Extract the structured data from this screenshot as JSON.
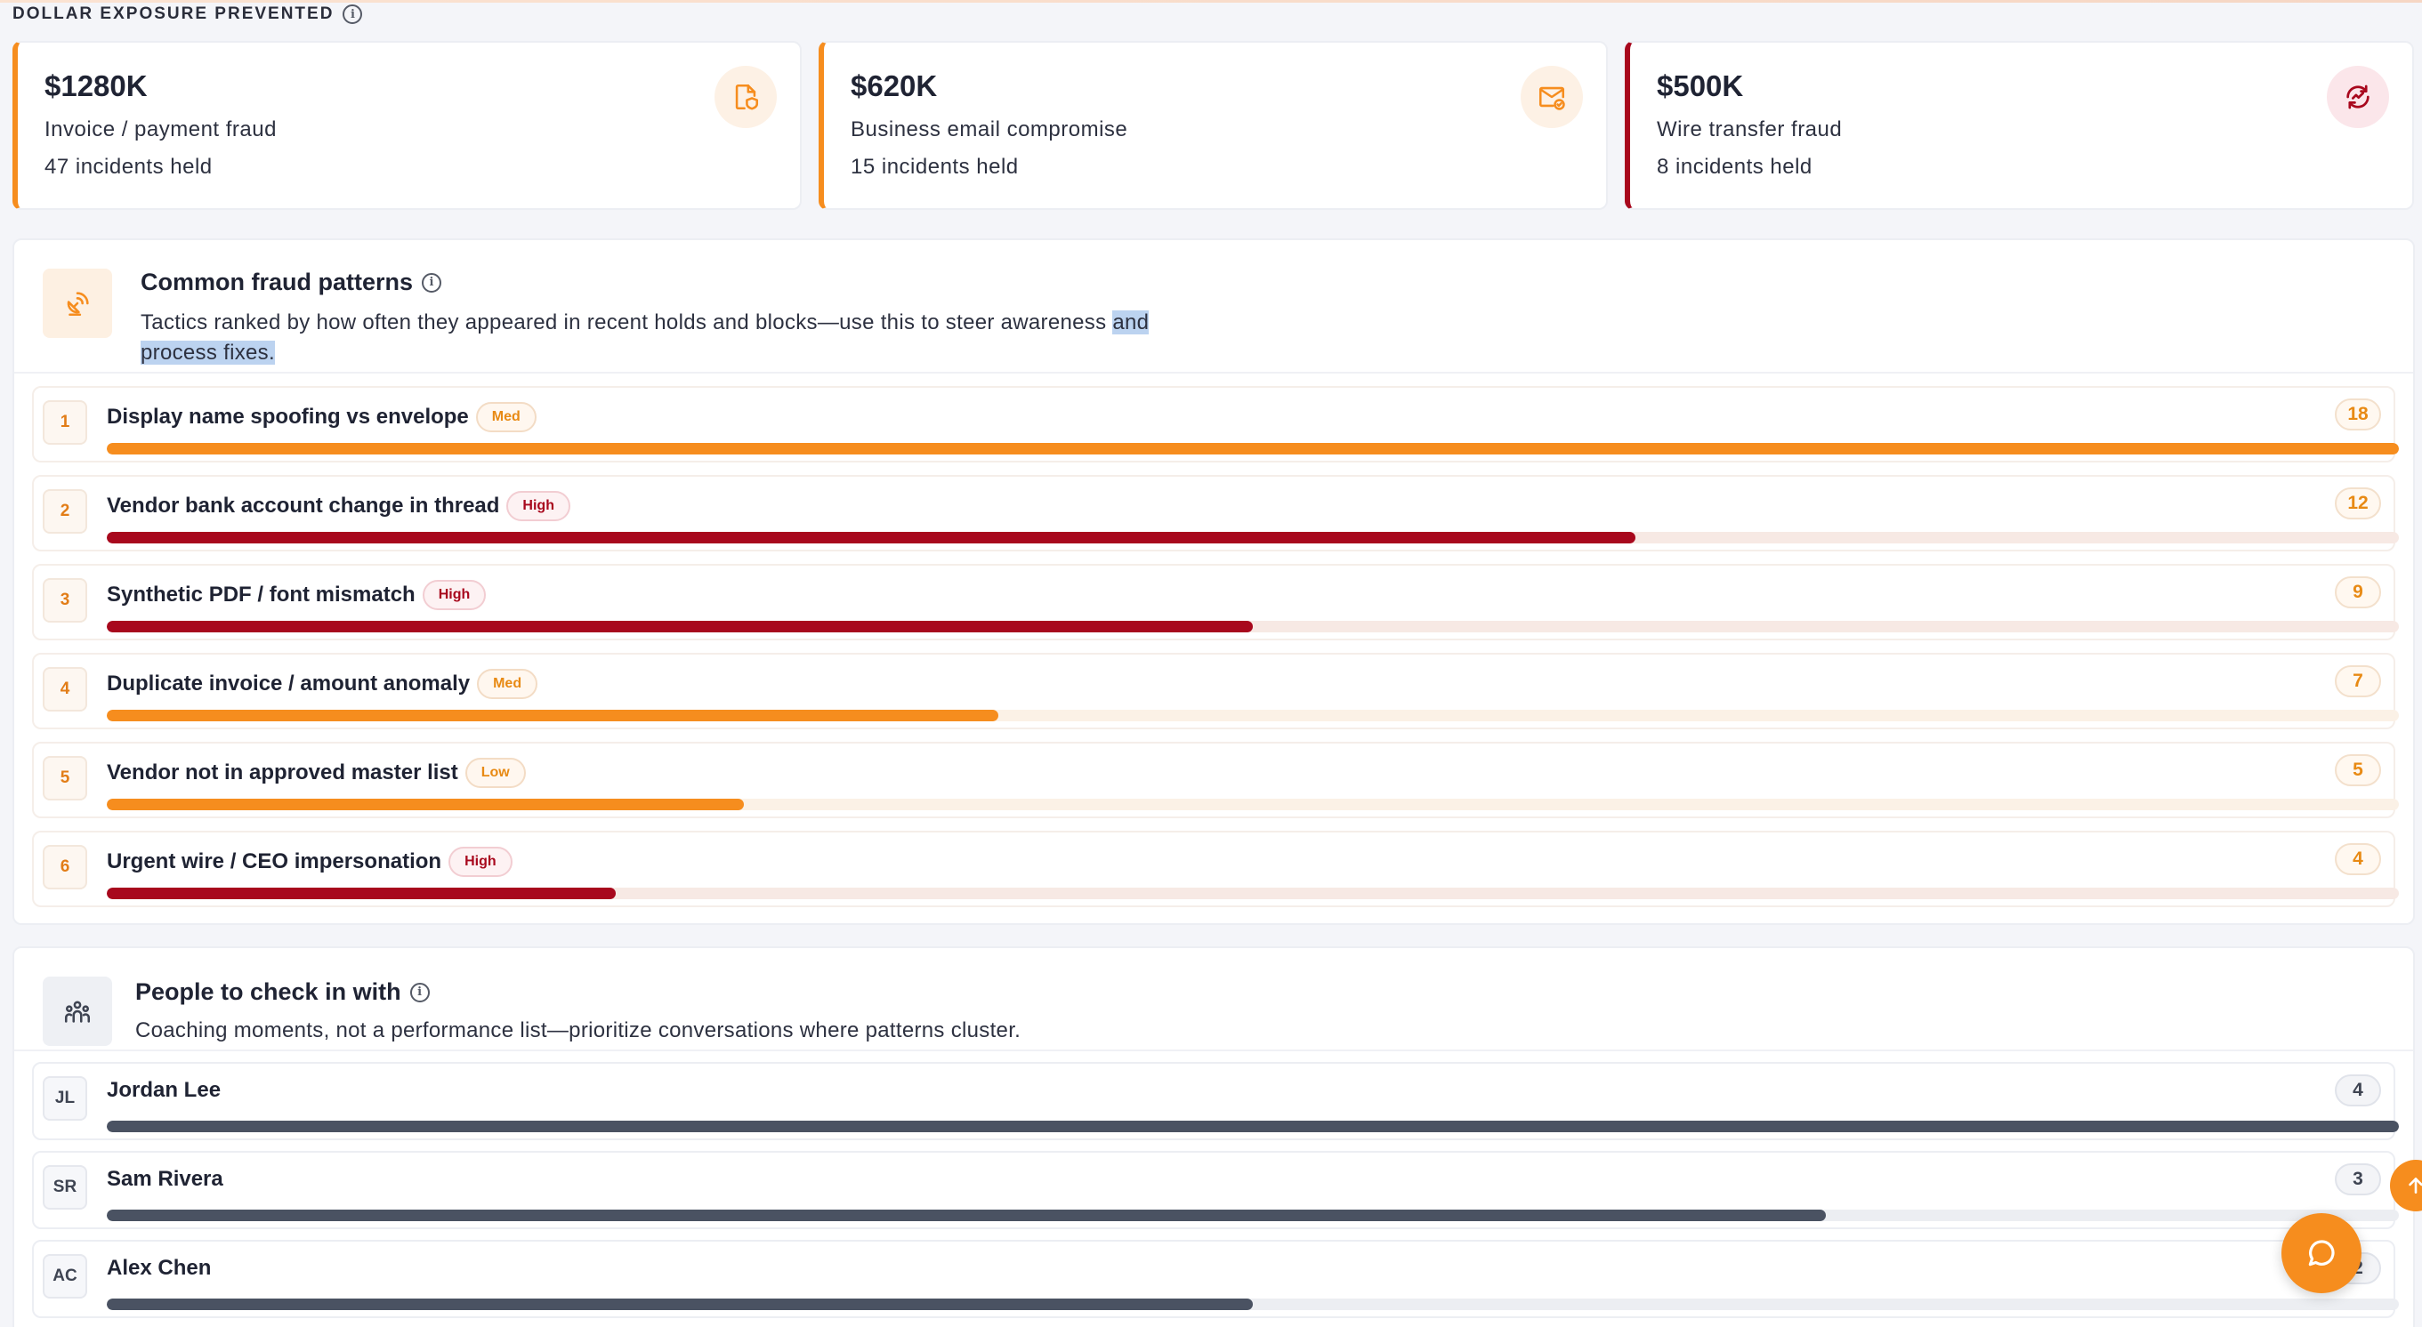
{
  "section": {
    "label": "DOLLAR EXPOSURE PREVENTED"
  },
  "cards": [
    {
      "amount": "$1280K",
      "desc": "Invoice / payment fraud",
      "incidents": "47 incidents held",
      "icon": "invoice-shield-icon",
      "accent": "#f68d1e"
    },
    {
      "amount": "$620K",
      "desc": "Business email compromise",
      "incidents": "15 incidents held",
      "icon": "mail-check-icon",
      "accent": "#f68d1e"
    },
    {
      "amount": "$500K",
      "desc": "Wire transfer fraud",
      "incidents": "8 incidents held",
      "icon": "wire-transfer-icon",
      "accent": "#a8081d"
    }
  ],
  "patterns": {
    "title": "Common fraud patterns",
    "subtitle_a": "Tactics ranked by how often they appeared in recent holds and blocks—use this to steer awareness ",
    "subtitle_b": "and process fixes.",
    "items": [
      {
        "rank": "1",
        "label": "Display name spoofing vs envelope",
        "severity": "Med",
        "count": "18",
        "fraction": 1.0,
        "color": "#f68d1e"
      },
      {
        "rank": "2",
        "label": "Vendor bank account change in thread",
        "severity": "High",
        "count": "12",
        "fraction": 0.667,
        "color": "#a8081d"
      },
      {
        "rank": "3",
        "label": "Synthetic PDF / font mismatch",
        "severity": "High",
        "count": "9",
        "fraction": 0.5,
        "color": "#a8081d"
      },
      {
        "rank": "4",
        "label": "Duplicate invoice / amount anomaly",
        "severity": "Med",
        "count": "7",
        "fraction": 0.389,
        "color": "#f68d1e"
      },
      {
        "rank": "5",
        "label": "Vendor not in approved master list",
        "severity": "Low",
        "count": "5",
        "fraction": 0.278,
        "color": "#f68d1e"
      },
      {
        "rank": "6",
        "label": "Urgent wire / CEO impersonation",
        "severity": "High",
        "count": "4",
        "fraction": 0.222,
        "color": "#a8081d"
      }
    ]
  },
  "people": {
    "title": "People to check in with",
    "subtitle": "Coaching moments, not a performance list—prioritize conversations where patterns cluster.",
    "items": [
      {
        "initials": "JL",
        "name": "Jordan Lee",
        "count": "4",
        "fraction": 1.0
      },
      {
        "initials": "SR",
        "name": "Sam Rivera",
        "count": "3",
        "fraction": 0.75
      },
      {
        "initials": "AC",
        "name": "Alex Chen",
        "count": "2",
        "fraction": 0.5
      }
    ]
  }
}
